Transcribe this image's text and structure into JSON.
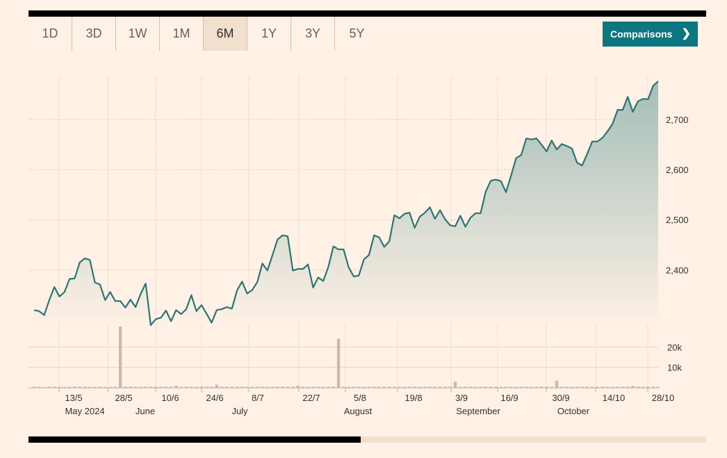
{
  "tabs": [
    {
      "label": "1D",
      "active": false
    },
    {
      "label": "3D",
      "active": false
    },
    {
      "label": "1W",
      "active": false
    },
    {
      "label": "1M",
      "active": false
    },
    {
      "label": "6M",
      "active": true
    },
    {
      "label": "1Y",
      "active": false
    },
    {
      "label": "3Y",
      "active": false
    },
    {
      "label": "5Y",
      "active": false
    }
  ],
  "comparisons_button": {
    "label": "Comparisons",
    "icon": "chevron-right-icon"
  },
  "colors": {
    "line": "#2e7275",
    "fill_top": "#9fbcb6",
    "fill_bottom": "#fff1e5",
    "volume": "#cdb9a9",
    "accent": "#0d7680"
  },
  "chart_data": {
    "type": "line",
    "x_tick_labels": [
      "13/5",
      "28/5",
      "10/6",
      "24/6",
      "8/7",
      "22/7",
      "5/8",
      "19/8",
      "3/9",
      "16/9",
      "30/9",
      "14/10",
      "28/10"
    ],
    "month_labels": [
      "May 2024",
      "June",
      "July",
      "August",
      "September",
      "October"
    ],
    "y_ticks": [
      2400,
      2500,
      2600,
      2700
    ],
    "y_tick_labels": [
      "2,400",
      "2,500",
      "2,600",
      "2,700"
    ],
    "ylim": [
      2294,
      2780
    ],
    "series": [
      {
        "values": [
          2320,
          2318,
          2310,
          2340,
          2366,
          2347,
          2356,
          2382,
          2383,
          2415,
          2423,
          2420,
          2375,
          2371,
          2340,
          2356,
          2338,
          2338,
          2325,
          2341,
          2326,
          2352,
          2373,
          2290,
          2302,
          2305,
          2319,
          2298,
          2320,
          2312,
          2322,
          2350,
          2318,
          2330,
          2313,
          2295,
          2320,
          2322,
          2326,
          2323,
          2359,
          2377,
          2353,
          2360,
          2376,
          2413,
          2399,
          2430,
          2461,
          2469,
          2467,
          2399,
          2402,
          2402,
          2411,
          2365,
          2385,
          2378,
          2406,
          2447,
          2441,
          2441,
          2405,
          2387,
          2389,
          2421,
          2430,
          2469,
          2465,
          2446,
          2457,
          2509,
          2503,
          2512,
          2514,
          2484,
          2506,
          2514,
          2525,
          2502,
          2519,
          2501,
          2489,
          2487,
          2508,
          2486,
          2504,
          2513,
          2513,
          2556,
          2578,
          2580,
          2577,
          2555,
          2588,
          2623,
          2629,
          2662,
          2660,
          2662,
          2650,
          2636,
          2658,
          2640,
          2651,
          2647,
          2642,
          2614,
          2608,
          2631,
          2656,
          2656,
          2663,
          2676,
          2691,
          2719,
          2719,
          2745,
          2715,
          2736,
          2741,
          2740,
          2767,
          2776
        ]
      }
    ],
    "volume_y_ticks": [
      10000,
      20000
    ],
    "volume_y_tick_labels": [
      "10k",
      "20k"
    ],
    "volume_ylim": [
      0,
      30000
    ],
    "volume": [
      500,
      500,
      400,
      600,
      500,
      500,
      400,
      500,
      600,
      500,
      500,
      400,
      500,
      500,
      400,
      500,
      500,
      500,
      500,
      500,
      500,
      500,
      500,
      600,
      500,
      500,
      500,
      500,
      500,
      500,
      500,
      500,
      500,
      500,
      500,
      500,
      500,
      500,
      500,
      500,
      500,
      500,
      500,
      500,
      500,
      500,
      500,
      500,
      500,
      500,
      500,
      500,
      500,
      500,
      500,
      500,
      500,
      500,
      500,
      500,
      500,
      500,
      500,
      500,
      500,
      500,
      500,
      500,
      500,
      500,
      500,
      500,
      500,
      500,
      500,
      500,
      500,
      500,
      500,
      500,
      500,
      500,
      500,
      500,
      500,
      500,
      500,
      500,
      500,
      500,
      500,
      500,
      500,
      500,
      500,
      500,
      500,
      500,
      500,
      500,
      500,
      500,
      500,
      500,
      500,
      500,
      500,
      500,
      500,
      500,
      500,
      500,
      500,
      500,
      500,
      500,
      500,
      500,
      500,
      500,
      500,
      500,
      500,
      500
    ],
    "volume_spikes": [
      {
        "index": 17,
        "value": 30000
      },
      {
        "index": 60,
        "value": 24000
      },
      {
        "index": 83,
        "value": 3000
      },
      {
        "index": 103,
        "value": 3500
      },
      {
        "index": 28,
        "value": 1000
      },
      {
        "index": 36,
        "value": 1500
      },
      {
        "index": 52,
        "value": 1000
      },
      {
        "index": 118,
        "value": 900
      }
    ],
    "grid": true
  }
}
